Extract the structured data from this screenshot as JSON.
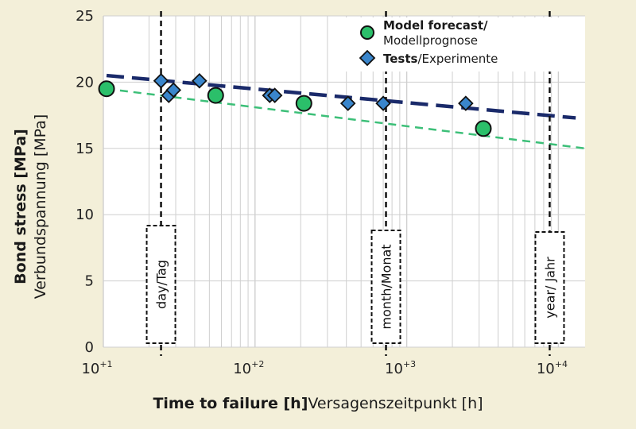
{
  "colors": {
    "background": "#f3efd9",
    "plot_area": "#ffffff",
    "grid": "#cfcfcf",
    "model": "#2bbf6a",
    "model_line": "#3cbf78",
    "tests": "#3a86cc",
    "tests_line": "#1a2a6a",
    "marker_edge": "#111111"
  },
  "chart_data": {
    "type": "scatter",
    "xscale": "log",
    "xlim": [
      10,
      15000
    ],
    "ylim": [
      0,
      25
    ],
    "xlabel": {
      "bold": "Time to failure [h]",
      "normal": "Versagenszeitpunkt [h]"
    },
    "ylabel": {
      "bold": "Bond stress [MPa]",
      "normal": "Verbundspannung [MPa]"
    },
    "x_ticks": [
      {
        "value": 10,
        "base": "10",
        "exp": "+1"
      },
      {
        "value": 100,
        "base": "10",
        "exp": "+2"
      },
      {
        "value": 1000,
        "base": "10",
        "exp": "+3"
      },
      {
        "value": 10000,
        "base": "10",
        "exp": "+4"
      }
    ],
    "y_ticks": [
      0,
      5,
      10,
      15,
      20,
      25
    ],
    "grid": true,
    "legend_position": "top-right",
    "series": [
      {
        "name_bold": "Model forecast/",
        "name_normal": "Modellprognose",
        "marker": "circle",
        "points": [
          [
            10.5,
            19.5
          ],
          [
            55,
            19.0
          ],
          [
            210,
            18.4
          ],
          [
            3200,
            16.5
          ]
        ],
        "trend": [
          [
            10.5,
            19.5
          ],
          [
            15000,
            15.0
          ]
        ]
      },
      {
        "name_bold": "Tests",
        "name_normal": "/Experimente",
        "marker": "diamond",
        "points": [
          [
            24,
            20.1
          ],
          [
            27,
            19.0
          ],
          [
            29,
            19.4
          ],
          [
            43,
            20.1
          ],
          [
            125,
            19.0
          ],
          [
            135,
            19.0
          ],
          [
            410,
            18.4
          ],
          [
            700,
            18.4
          ],
          [
            2450,
            18.4
          ]
        ],
        "trend": [
          [
            10.5,
            20.5
          ],
          [
            13000,
            17.3
          ]
        ]
      }
    ],
    "annotations": [
      {
        "label": "day/Tag",
        "x": 24
      },
      {
        "label": "month/Monat",
        "x": 730
      },
      {
        "label": "year/ Jahr",
        "x": 8760
      }
    ]
  }
}
